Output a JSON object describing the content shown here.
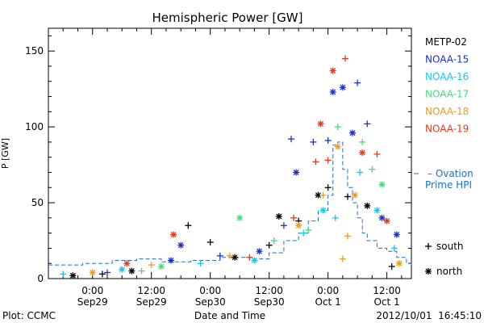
{
  "footer": {
    "plot_label": "Plot: CCMC",
    "timestamp": "2012/10/01  16:45:10"
  },
  "chart_data": {
    "type": "scatter",
    "title": "Hemispheric Power [GW]",
    "xlabel": "Date and Time",
    "ylabel": "P [GW]",
    "xlim": [
      "2012-09-28T15:00",
      "2012-10-01T17:00"
    ],
    "ylim": [
      0,
      165
    ],
    "y_ticks": [
      0,
      50,
      100,
      150
    ],
    "x_ticks": [
      {
        "t": "2012-09-29T00:00",
        "line1": "0:00",
        "line2": "Sep29"
      },
      {
        "t": "2012-09-29T12:00",
        "line1": "12:00",
        "line2": "Sep29"
      },
      {
        "t": "2012-09-30T00:00",
        "line1": "0:00",
        "line2": "Sep30"
      },
      {
        "t": "2012-09-30T12:00",
        "line1": "12:00",
        "line2": "Sep30"
      },
      {
        "t": "2012-10-01T00:00",
        "line1": "0:00",
        "line2": "Oct 1"
      },
      {
        "t": "2012-10-01T12:00",
        "line1": "12:00",
        "line2": "Oct 1"
      }
    ],
    "grid": false,
    "legend_position": "right",
    "marker_legend": [
      {
        "symbol": "+",
        "label": "south"
      },
      {
        "symbol": "*",
        "label": "north"
      }
    ],
    "ovation": {
      "label_line1": "– Ovation",
      "label_line2": "Prime HPI",
      "color": "#1e6fd0",
      "t": [
        "2012-09-28T15:00",
        "2012-09-28T22:00",
        "2012-09-29T04:00",
        "2012-09-29T09:00",
        "2012-09-29T14:00",
        "2012-09-29T20:00",
        "2012-09-30T02:00",
        "2012-09-30T08:00",
        "2012-09-30T12:00",
        "2012-09-30T15:00",
        "2012-09-30T18:00",
        "2012-09-30T20:00",
        "2012-09-30T22:00",
        "2012-10-01T00:00",
        "2012-10-01T01:00",
        "2012-10-01T02:00",
        "2012-10-01T03:00",
        "2012-10-01T04:00",
        "2012-10-01T05:00",
        "2012-10-01T06:00",
        "2012-10-01T07:00",
        "2012-10-01T08:00",
        "2012-10-01T10:00",
        "2012-10-01T12:00",
        "2012-10-01T14:00",
        "2012-10-01T16:00",
        "2012-10-01T17:00"
      ],
      "p": [
        9,
        10,
        12,
        13,
        11,
        12,
        14,
        13,
        17,
        25,
        30,
        38,
        45,
        55,
        88,
        90,
        72,
        60,
        50,
        40,
        30,
        25,
        20,
        18,
        14,
        10,
        8
      ]
    },
    "series": [
      {
        "name": "METP-02",
        "color": "#000000",
        "points": [
          {
            "t": "2012-09-28T20:00",
            "p": 2,
            "m": "*"
          },
          {
            "t": "2012-09-29T02:00",
            "p": 3,
            "m": "+"
          },
          {
            "t": "2012-09-29T08:00",
            "p": 5,
            "m": "*"
          },
          {
            "t": "2012-09-29T19:30",
            "p": 35,
            "m": "+"
          },
          {
            "t": "2012-09-30T00:00",
            "p": 24,
            "m": "+"
          },
          {
            "t": "2012-09-30T05:00",
            "p": 14,
            "m": "*"
          },
          {
            "t": "2012-09-30T12:00",
            "p": 22,
            "m": "+"
          },
          {
            "t": "2012-09-30T14:00",
            "p": 41,
            "m": "*"
          },
          {
            "t": "2012-09-30T18:00",
            "p": 38,
            "m": "+"
          },
          {
            "t": "2012-09-30T22:00",
            "p": 55,
            "m": "*"
          },
          {
            "t": "2012-10-01T00:00",
            "p": 60,
            "m": "+"
          },
          {
            "t": "2012-10-01T04:00",
            "p": 54,
            "m": "+"
          },
          {
            "t": "2012-10-01T08:00",
            "p": 48,
            "m": "*"
          },
          {
            "t": "2012-10-01T13:00",
            "p": 8,
            "m": "+"
          }
        ]
      },
      {
        "name": "NOAA-15",
        "color": "#1a2fd0",
        "points": [
          {
            "t": "2012-09-29T03:00",
            "p": 4,
            "m": "+"
          },
          {
            "t": "2012-09-29T16:00",
            "p": 12,
            "m": "*"
          },
          {
            "t": "2012-09-29T18:00",
            "p": 22,
            "m": "*"
          },
          {
            "t": "2012-09-30T02:00",
            "p": 15,
            "m": "+"
          },
          {
            "t": "2012-09-30T10:00",
            "p": 18,
            "m": "*"
          },
          {
            "t": "2012-09-30T15:00",
            "p": 35,
            "m": "+"
          },
          {
            "t": "2012-09-30T16:30",
            "p": 92,
            "m": "+"
          },
          {
            "t": "2012-09-30T17:30",
            "p": 70,
            "m": "*"
          },
          {
            "t": "2012-09-30T21:00",
            "p": 90,
            "m": "+"
          },
          {
            "t": "2012-10-01T00:00",
            "p": 91,
            "m": "+"
          },
          {
            "t": "2012-10-01T01:00",
            "p": 123,
            "m": "*"
          },
          {
            "t": "2012-10-01T03:00",
            "p": 126,
            "m": "*"
          },
          {
            "t": "2012-10-01T05:00",
            "p": 96,
            "m": "*"
          },
          {
            "t": "2012-10-01T06:00",
            "p": 129,
            "m": "+"
          },
          {
            "t": "2012-10-01T08:00",
            "p": 102,
            "m": "+"
          },
          {
            "t": "2012-10-01T11:00",
            "p": 40,
            "m": "*"
          },
          {
            "t": "2012-10-01T14:00",
            "p": 29,
            "m": "*"
          }
        ]
      },
      {
        "name": "NOAA-16",
        "color": "#18c8e8",
        "points": [
          {
            "t": "2012-09-28T18:00",
            "p": 3,
            "m": "+"
          },
          {
            "t": "2012-09-29T06:00",
            "p": 6,
            "m": "*"
          },
          {
            "t": "2012-09-29T22:00",
            "p": 10,
            "m": "+"
          },
          {
            "t": "2012-09-30T09:00",
            "p": 12,
            "m": "*"
          },
          {
            "t": "2012-09-30T19:00",
            "p": 30,
            "m": "+"
          },
          {
            "t": "2012-09-30T23:00",
            "p": 45,
            "m": "*"
          },
          {
            "t": "2012-10-01T01:30",
            "p": 40,
            "m": "+"
          },
          {
            "t": "2012-10-01T06:30",
            "p": 70,
            "m": "+"
          },
          {
            "t": "2012-10-01T10:00",
            "p": 45,
            "m": "*"
          },
          {
            "t": "2012-10-01T13:30",
            "p": 20,
            "m": "+"
          }
        ]
      },
      {
        "name": "NOAA-17",
        "color": "#3fe07a",
        "points": [
          {
            "t": "2012-09-29T10:00",
            "p": 5,
            "m": "+"
          },
          {
            "t": "2012-09-29T14:00",
            "p": 8,
            "m": "*"
          },
          {
            "t": "2012-09-30T06:00",
            "p": 40,
            "m": "*"
          },
          {
            "t": "2012-09-30T13:00",
            "p": 25,
            "m": "+"
          },
          {
            "t": "2012-09-30T20:00",
            "p": 32,
            "m": "+"
          },
          {
            "t": "2012-10-01T02:00",
            "p": 100,
            "m": "+"
          },
          {
            "t": "2012-10-01T07:00",
            "p": 90,
            "m": "+"
          },
          {
            "t": "2012-10-01T09:00",
            "p": 72,
            "m": "+"
          },
          {
            "t": "2012-10-01T11:00",
            "p": 62,
            "m": "*"
          }
        ]
      },
      {
        "name": "NOAA-18",
        "color": "#f09a1e",
        "points": [
          {
            "t": "2012-09-29T00:00",
            "p": 4,
            "m": "*"
          },
          {
            "t": "2012-09-29T12:00",
            "p": 9,
            "m": "+"
          },
          {
            "t": "2012-09-30T04:00",
            "p": 15,
            "m": "+"
          },
          {
            "t": "2012-09-30T18:00",
            "p": 35,
            "m": "*"
          },
          {
            "t": "2012-09-30T23:00",
            "p": 55,
            "m": "+"
          },
          {
            "t": "2012-10-01T02:00",
            "p": 87,
            "m": "*"
          },
          {
            "t": "2012-10-01T04:00",
            "p": 28,
            "m": "+"
          },
          {
            "t": "2012-10-01T05:30",
            "p": 55,
            "m": "*"
          },
          {
            "t": "2012-10-01T03:00",
            "p": 13,
            "m": "+"
          },
          {
            "t": "2012-10-01T14:30",
            "p": 10,
            "m": "*"
          }
        ]
      },
      {
        "name": "NOAA-19",
        "color": "#e83a1a",
        "points": [
          {
            "t": "2012-09-29T07:00",
            "p": 10,
            "m": "*"
          },
          {
            "t": "2012-09-29T16:30",
            "p": 29,
            "m": "*"
          },
          {
            "t": "2012-09-30T08:00",
            "p": 14,
            "m": "+"
          },
          {
            "t": "2012-09-30T17:00",
            "p": 40,
            "m": "+"
          },
          {
            "t": "2012-09-30T21:30",
            "p": 77,
            "m": "+"
          },
          {
            "t": "2012-09-30T22:30",
            "p": 102,
            "m": "*"
          },
          {
            "t": "2012-10-01T00:00",
            "p": 78,
            "m": "+"
          },
          {
            "t": "2012-10-01T01:00",
            "p": 137,
            "m": "*"
          },
          {
            "t": "2012-10-01T03:30",
            "p": 145,
            "m": "+"
          },
          {
            "t": "2012-10-01T07:00",
            "p": 83,
            "m": "*"
          },
          {
            "t": "2012-10-01T10:00",
            "p": 82,
            "m": "+"
          },
          {
            "t": "2012-10-01T12:00",
            "p": 38,
            "m": "*"
          }
        ]
      }
    ]
  }
}
